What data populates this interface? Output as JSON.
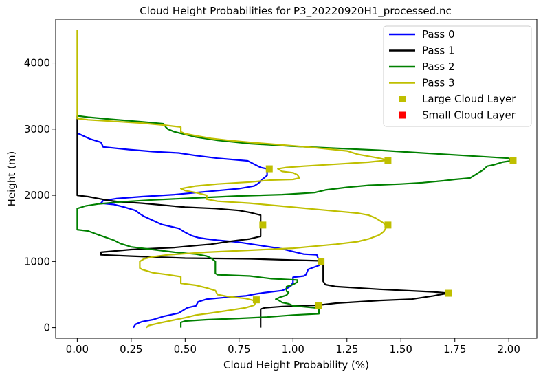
{
  "chart_data": {
    "type": "line",
    "title": "Cloud Height Probabilities for P3_20220920H1_processed.nc",
    "xlabel": "Cloud Height Probability (%)",
    "ylabel": "Height (m)",
    "xlim": [
      -0.1,
      2.13
    ],
    "ylim": [
      -160,
      4660
    ],
    "xticks": [
      0.0,
      0.25,
      0.5,
      0.75,
      1.0,
      1.25,
      1.5,
      1.75,
      2.0
    ],
    "xtick_labels": [
      "0.00",
      "0.25",
      "0.50",
      "0.75",
      "1.00",
      "1.25",
      "1.50",
      "1.75",
      "2.00"
    ],
    "yticks": [
      0,
      1000,
      2000,
      3000,
      4000
    ],
    "ytick_labels": [
      "0",
      "1000",
      "2000",
      "3000",
      "4000"
    ],
    "grid": false,
    "legend_position": "top-right",
    "series": [
      {
        "name": "Pass 0",
        "color": "#0000ff",
        "points": [
          [
            0.26,
            0
          ],
          [
            0.27,
            50
          ],
          [
            0.3,
            90
          ],
          [
            0.35,
            120
          ],
          [
            0.4,
            170
          ],
          [
            0.47,
            220
          ],
          [
            0.51,
            300
          ],
          [
            0.55,
            330
          ],
          [
            0.56,
            390
          ],
          [
            0.6,
            430
          ],
          [
            0.7,
            460
          ],
          [
            0.78,
            480
          ],
          [
            0.83,
            510
          ],
          [
            0.87,
            530
          ],
          [
            0.95,
            560
          ],
          [
            0.97,
            590
          ],
          [
            0.99,
            630
          ],
          [
            1.0,
            680
          ],
          [
            1.0,
            760
          ],
          [
            1.05,
            780
          ],
          [
            1.06,
            800
          ],
          [
            1.07,
            880
          ],
          [
            1.12,
            940
          ],
          [
            1.13,
            1000
          ],
          [
            1.12,
            1020
          ],
          [
            1.11,
            1100
          ],
          [
            1.05,
            1110
          ],
          [
            1.0,
            1150
          ],
          [
            0.95,
            1190
          ],
          [
            0.85,
            1240
          ],
          [
            0.75,
            1290
          ],
          [
            0.65,
            1320
          ],
          [
            0.6,
            1340
          ],
          [
            0.56,
            1360
          ],
          [
            0.53,
            1390
          ],
          [
            0.5,
            1440
          ],
          [
            0.47,
            1500
          ],
          [
            0.43,
            1530
          ],
          [
            0.39,
            1560
          ],
          [
            0.35,
            1620
          ],
          [
            0.31,
            1680
          ],
          [
            0.29,
            1720
          ],
          [
            0.27,
            1770
          ],
          [
            0.22,
            1820
          ],
          [
            0.17,
            1860
          ],
          [
            0.11,
            1880
          ],
          [
            0.12,
            1920
          ],
          [
            0.18,
            1950
          ],
          [
            0.3,
            1980
          ],
          [
            0.45,
            2010
          ],
          [
            0.55,
            2040
          ],
          [
            0.65,
            2070
          ],
          [
            0.75,
            2100
          ],
          [
            0.82,
            2140
          ],
          [
            0.84,
            2180
          ],
          [
            0.85,
            2220
          ],
          [
            0.88,
            2300
          ],
          [
            0.88,
            2400
          ],
          [
            0.85,
            2420
          ],
          [
            0.79,
            2520
          ],
          [
            0.65,
            2560
          ],
          [
            0.55,
            2600
          ],
          [
            0.47,
            2640
          ],
          [
            0.35,
            2660
          ],
          [
            0.24,
            2690
          ],
          [
            0.12,
            2730
          ],
          [
            0.11,
            2800
          ],
          [
            0.06,
            2850
          ],
          [
            0.0,
            2940
          ]
        ]
      },
      {
        "name": "Pass 1",
        "color": "#000000",
        "points": [
          [
            0.85,
            0
          ],
          [
            0.85,
            280
          ],
          [
            0.87,
            300
          ],
          [
            0.95,
            320
          ],
          [
            1.12,
            340
          ],
          [
            1.2,
            370
          ],
          [
            1.3,
            390
          ],
          [
            1.4,
            410
          ],
          [
            1.55,
            430
          ],
          [
            1.65,
            480
          ],
          [
            1.7,
            510
          ],
          [
            1.72,
            520
          ],
          [
            1.65,
            540
          ],
          [
            1.4,
            580
          ],
          [
            1.2,
            620
          ],
          [
            1.15,
            650
          ],
          [
            1.14,
            700
          ],
          [
            1.14,
            1000
          ],
          [
            1.12,
            1010
          ],
          [
            1.0,
            1020
          ],
          [
            0.8,
            1040
          ],
          [
            0.5,
            1050
          ],
          [
            0.25,
            1080
          ],
          [
            0.11,
            1100
          ],
          [
            0.11,
            1140
          ],
          [
            0.25,
            1180
          ],
          [
            0.45,
            1210
          ],
          [
            0.55,
            1240
          ],
          [
            0.62,
            1260
          ],
          [
            0.7,
            1300
          ],
          [
            0.75,
            1320
          ],
          [
            0.8,
            1340
          ],
          [
            0.85,
            1380
          ],
          [
            0.85,
            1700
          ],
          [
            0.8,
            1740
          ],
          [
            0.75,
            1770
          ],
          [
            0.64,
            1800
          ],
          [
            0.5,
            1820
          ],
          [
            0.4,
            1850
          ],
          [
            0.3,
            1880
          ],
          [
            0.2,
            1900
          ],
          [
            0.15,
            1920
          ],
          [
            0.1,
            1950
          ],
          [
            0.05,
            1980
          ],
          [
            0.0,
            2000
          ],
          [
            0.0,
            3200
          ]
        ]
      },
      {
        "name": "Pass 2",
        "color": "#008000",
        "points": [
          [
            0.48,
            0
          ],
          [
            0.48,
            80
          ],
          [
            0.5,
            100
          ],
          [
            0.6,
            120
          ],
          [
            0.75,
            140
          ],
          [
            0.88,
            160
          ],
          [
            1.0,
            190
          ],
          [
            1.12,
            210
          ],
          [
            1.12,
            280
          ],
          [
            1.1,
            300
          ],
          [
            1.0,
            330
          ],
          [
            0.98,
            360
          ],
          [
            0.95,
            380
          ],
          [
            0.93,
            420
          ],
          [
            0.92,
            430
          ],
          [
            0.94,
            460
          ],
          [
            0.97,
            490
          ],
          [
            0.98,
            530
          ],
          [
            0.97,
            550
          ],
          [
            0.97,
            620
          ],
          [
            1.0,
            650
          ],
          [
            1.02,
            690
          ],
          [
            1.02,
            720
          ],
          [
            0.9,
            740
          ],
          [
            0.8,
            780
          ],
          [
            0.65,
            800
          ],
          [
            0.64,
            820
          ],
          [
            0.64,
            1000
          ],
          [
            0.62,
            1050
          ],
          [
            0.6,
            1080
          ],
          [
            0.55,
            1110
          ],
          [
            0.45,
            1140
          ],
          [
            0.35,
            1180
          ],
          [
            0.25,
            1220
          ],
          [
            0.2,
            1270
          ],
          [
            0.17,
            1320
          ],
          [
            0.1,
            1400
          ],
          [
            0.05,
            1460
          ],
          [
            0.0,
            1480
          ],
          [
            0.0,
            1800
          ],
          [
            0.04,
            1840
          ],
          [
            0.1,
            1870
          ],
          [
            0.2,
            1900
          ],
          [
            0.35,
            1930
          ],
          [
            0.55,
            1960
          ],
          [
            0.75,
            1990
          ],
          [
            0.95,
            2010
          ],
          [
            1.1,
            2040
          ],
          [
            1.15,
            2080
          ],
          [
            1.25,
            2120
          ],
          [
            1.35,
            2150
          ],
          [
            1.5,
            2170
          ],
          [
            1.6,
            2190
          ],
          [
            1.7,
            2220
          ],
          [
            1.75,
            2240
          ],
          [
            1.82,
            2260
          ],
          [
            1.84,
            2300
          ],
          [
            1.86,
            2340
          ],
          [
            1.88,
            2380
          ],
          [
            1.9,
            2440
          ],
          [
            1.93,
            2460
          ],
          [
            1.97,
            2500
          ],
          [
            2.01,
            2520
          ],
          [
            2.0,
            2560
          ],
          [
            1.8,
            2600
          ],
          [
            1.6,
            2640
          ],
          [
            1.4,
            2680
          ],
          [
            1.2,
            2710
          ],
          [
            1.0,
            2740
          ],
          [
            0.8,
            2780
          ],
          [
            0.65,
            2830
          ],
          [
            0.55,
            2880
          ],
          [
            0.5,
            2920
          ],
          [
            0.45,
            2960
          ],
          [
            0.42,
            3000
          ],
          [
            0.41,
            3030
          ],
          [
            0.4,
            3080
          ],
          [
            0.3,
            3110
          ],
          [
            0.15,
            3150
          ],
          [
            0.05,
            3180
          ],
          [
            0.0,
            3200
          ]
        ]
      },
      {
        "name": "Pass 3",
        "color": "#bfbf00",
        "points": [
          [
            0.32,
            0
          ],
          [
            0.33,
            30
          ],
          [
            0.38,
            70
          ],
          [
            0.44,
            110
          ],
          [
            0.5,
            150
          ],
          [
            0.55,
            190
          ],
          [
            0.62,
            220
          ],
          [
            0.7,
            260
          ],
          [
            0.78,
            300
          ],
          [
            0.82,
            340
          ],
          [
            0.83,
            400
          ],
          [
            0.78,
            440
          ],
          [
            0.7,
            470
          ],
          [
            0.65,
            500
          ],
          [
            0.64,
            560
          ],
          [
            0.6,
            600
          ],
          [
            0.55,
            640
          ],
          [
            0.48,
            670
          ],
          [
            0.48,
            770
          ],
          [
            0.42,
            800
          ],
          [
            0.35,
            830
          ],
          [
            0.3,
            880
          ],
          [
            0.29,
            900
          ],
          [
            0.29,
            1000
          ],
          [
            0.31,
            1040
          ],
          [
            0.35,
            1070
          ],
          [
            0.42,
            1100
          ],
          [
            0.6,
            1140
          ],
          [
            0.8,
            1170
          ],
          [
            1.0,
            1200
          ],
          [
            1.1,
            1230
          ],
          [
            1.2,
            1260
          ],
          [
            1.3,
            1300
          ],
          [
            1.35,
            1340
          ],
          [
            1.4,
            1400
          ],
          [
            1.42,
            1450
          ],
          [
            1.43,
            1500
          ],
          [
            1.43,
            1550
          ],
          [
            1.42,
            1580
          ],
          [
            1.4,
            1620
          ],
          [
            1.38,
            1660
          ],
          [
            1.35,
            1700
          ],
          [
            1.3,
            1730
          ],
          [
            1.2,
            1760
          ],
          [
            1.1,
            1790
          ],
          [
            1.0,
            1820
          ],
          [
            0.9,
            1850
          ],
          [
            0.8,
            1880
          ],
          [
            0.65,
            1910
          ],
          [
            0.6,
            1940
          ],
          [
            0.6,
            2000
          ],
          [
            0.55,
            2040
          ],
          [
            0.5,
            2070
          ],
          [
            0.48,
            2100
          ],
          [
            0.55,
            2140
          ],
          [
            0.65,
            2170
          ],
          [
            0.8,
            2200
          ],
          [
            0.9,
            2230
          ],
          [
            1.0,
            2240
          ],
          [
            1.03,
            2260
          ],
          [
            1.02,
            2310
          ],
          [
            1.0,
            2340
          ],
          [
            0.95,
            2360
          ],
          [
            0.93,
            2400
          ],
          [
            0.97,
            2420
          ],
          [
            1.05,
            2440
          ],
          [
            1.2,
            2470
          ],
          [
            1.35,
            2500
          ],
          [
            1.44,
            2530
          ],
          [
            1.4,
            2560
          ],
          [
            1.3,
            2620
          ],
          [
            1.25,
            2670
          ],
          [
            1.1,
            2720
          ],
          [
            0.95,
            2760
          ],
          [
            0.8,
            2800
          ],
          [
            0.7,
            2830
          ],
          [
            0.62,
            2860
          ],
          [
            0.55,
            2900
          ],
          [
            0.5,
            2930
          ],
          [
            0.48,
            2960
          ],
          [
            0.48,
            3030
          ],
          [
            0.4,
            3060
          ],
          [
            0.3,
            3090
          ],
          [
            0.15,
            3120
          ],
          [
            0.05,
            3140
          ],
          [
            0.0,
            3160
          ],
          [
            0.0,
            4500
          ]
        ]
      }
    ],
    "markers": [
      {
        "name": "Large Cloud Layer",
        "color": "#bfbf00",
        "points": [
          [
            2.02,
            2530
          ],
          [
            1.44,
            2530
          ],
          [
            0.89,
            2400
          ],
          [
            0.86,
            1550
          ],
          [
            1.44,
            1550
          ],
          [
            1.13,
            1000
          ],
          [
            1.72,
            520
          ],
          [
            0.83,
            420
          ],
          [
            1.12,
            330
          ]
        ]
      },
      {
        "name": "Small Cloud Layer",
        "color": "#ff0000",
        "points": []
      }
    ]
  }
}
